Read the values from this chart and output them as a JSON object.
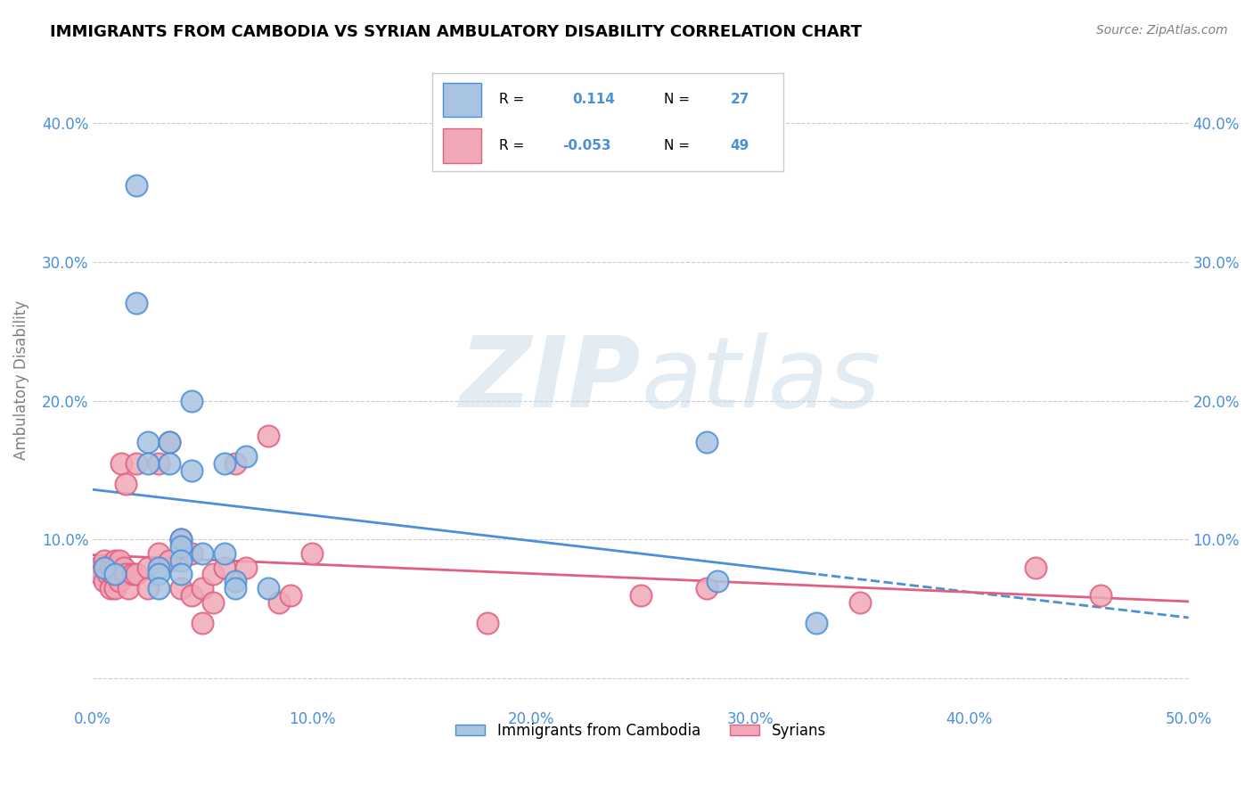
{
  "title": "IMMIGRANTS FROM CAMBODIA VS SYRIAN AMBULATORY DISABILITY CORRELATION CHART",
  "source": "Source: ZipAtlas.com",
  "xlabel": "",
  "ylabel": "Ambulatory Disability",
  "xlim": [
    0.0,
    0.5
  ],
  "ylim": [
    -0.02,
    0.45
  ],
  "xticks": [
    0.0,
    0.1,
    0.2,
    0.3,
    0.4,
    0.5
  ],
  "yticks": [
    0.0,
    0.1,
    0.2,
    0.3,
    0.4
  ],
  "ytick_labels": [
    "",
    "10.0%",
    "20.0%",
    "30.0%",
    "40.0%"
  ],
  "xtick_labels": [
    "0.0%",
    "10.0%",
    "20.0%",
    "30.0%",
    "40.0%",
    "50.0%"
  ],
  "cambodia_color": "#a8c4e0",
  "cambodia_color_line": "#4a90d9",
  "syrian_color": "#f0a8b8",
  "syrian_color_line": "#e06080",
  "cambodia_R": "0.114",
  "cambodia_N": "27",
  "syrian_R": "-0.053",
  "syrian_N": "49",
  "cambodia_x": [
    0.005,
    0.01,
    0.02,
    0.02,
    0.025,
    0.025,
    0.03,
    0.03,
    0.03,
    0.035,
    0.035,
    0.04,
    0.04,
    0.04,
    0.04,
    0.045,
    0.045,
    0.05,
    0.06,
    0.06,
    0.065,
    0.065,
    0.07,
    0.08,
    0.28,
    0.285,
    0.33
  ],
  "cambodia_y": [
    0.08,
    0.075,
    0.355,
    0.27,
    0.17,
    0.155,
    0.08,
    0.075,
    0.065,
    0.17,
    0.155,
    0.1,
    0.095,
    0.085,
    0.075,
    0.2,
    0.15,
    0.09,
    0.155,
    0.09,
    0.07,
    0.065,
    0.16,
    0.065,
    0.17,
    0.07,
    0.04
  ],
  "syrian_x": [
    0.002,
    0.003,
    0.005,
    0.005,
    0.006,
    0.007,
    0.008,
    0.008,
    0.009,
    0.01,
    0.01,
    0.01,
    0.012,
    0.012,
    0.013,
    0.014,
    0.015,
    0.015,
    0.016,
    0.018,
    0.02,
    0.02,
    0.025,
    0.025,
    0.03,
    0.03,
    0.035,
    0.035,
    0.04,
    0.04,
    0.045,
    0.045,
    0.05,
    0.05,
    0.055,
    0.055,
    0.06,
    0.065,
    0.07,
    0.08,
    0.085,
    0.09,
    0.1,
    0.18,
    0.25,
    0.28,
    0.35,
    0.43,
    0.46
  ],
  "syrian_y": [
    0.08,
    0.075,
    0.085,
    0.07,
    0.08,
    0.075,
    0.08,
    0.065,
    0.075,
    0.085,
    0.08,
    0.065,
    0.085,
    0.07,
    0.155,
    0.08,
    0.14,
    0.075,
    0.065,
    0.075,
    0.155,
    0.075,
    0.08,
    0.065,
    0.155,
    0.09,
    0.17,
    0.085,
    0.1,
    0.065,
    0.09,
    0.06,
    0.065,
    0.04,
    0.075,
    0.055,
    0.08,
    0.155,
    0.08,
    0.175,
    0.055,
    0.06,
    0.09,
    0.04,
    0.06,
    0.065,
    0.055,
    0.08,
    0.06
  ],
  "watermark_zip": "ZIP",
  "watermark_atlas": "atlas",
  "background_color": "#ffffff",
  "grid_color": "#cccccc",
  "text_color": "#4a90d9"
}
